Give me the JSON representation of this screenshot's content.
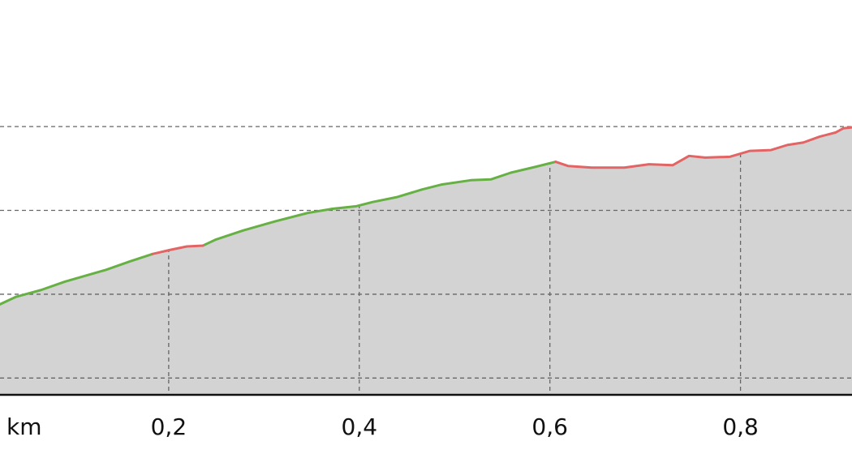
{
  "chart_data": {
    "type": "area_line",
    "x_label": "km",
    "x": [
      0.023,
      0.04,
      0.066,
      0.091,
      0.134,
      0.159,
      0.183,
      0.202,
      0.219,
      0.236,
      0.249,
      0.278,
      0.312,
      0.346,
      0.372,
      0.397,
      0.414,
      0.44,
      0.466,
      0.487,
      0.517,
      0.538,
      0.559,
      0.585,
      0.606,
      0.619,
      0.644,
      0.678,
      0.704,
      0.729,
      0.746,
      0.763,
      0.789,
      0.81,
      0.832,
      0.849,
      0.866,
      0.883,
      0.9,
      0.908,
      0.917
    ],
    "series": [
      {
        "color": "#66b044",
        "values": [
          0.88,
          0.97,
          1.05,
          1.15,
          1.29,
          1.39,
          1.48,
          null,
          null,
          1.58,
          1.65,
          1.76,
          1.87,
          1.97,
          2.02,
          2.05,
          2.1,
          2.16,
          2.25,
          2.31,
          2.36,
          2.37,
          2.45,
          2.52,
          2.58,
          null,
          null,
          null,
          null,
          null,
          null,
          null,
          null,
          null,
          null,
          null,
          null,
          null,
          null,
          null,
          null
        ]
      },
      {
        "color": "#e26464",
        "values": [
          null,
          null,
          null,
          null,
          null,
          null,
          1.48,
          1.53,
          1.57,
          1.58,
          null,
          null,
          null,
          null,
          null,
          null,
          null,
          null,
          null,
          null,
          null,
          null,
          null,
          null,
          2.58,
          2.53,
          2.51,
          2.51,
          2.55,
          2.54,
          2.65,
          2.63,
          2.64,
          2.71,
          2.72,
          2.78,
          2.81,
          2.88,
          2.93,
          2.98,
          2.99
        ]
      }
    ],
    "fill_color": "#d3d3d3",
    "xlim": [
      0.023,
      0.917
    ],
    "ylim": [
      -0.2,
      4.51
    ],
    "xticks": [
      {
        "value": 0.2,
        "label": "0,2"
      },
      {
        "value": 0.4,
        "label": "0,4"
      },
      {
        "value": 0.6,
        "label": "0,6"
      },
      {
        "value": 0.8,
        "label": "0,8"
      }
    ],
    "yticks": [
      0,
      1,
      2,
      3
    ],
    "grid": true
  }
}
